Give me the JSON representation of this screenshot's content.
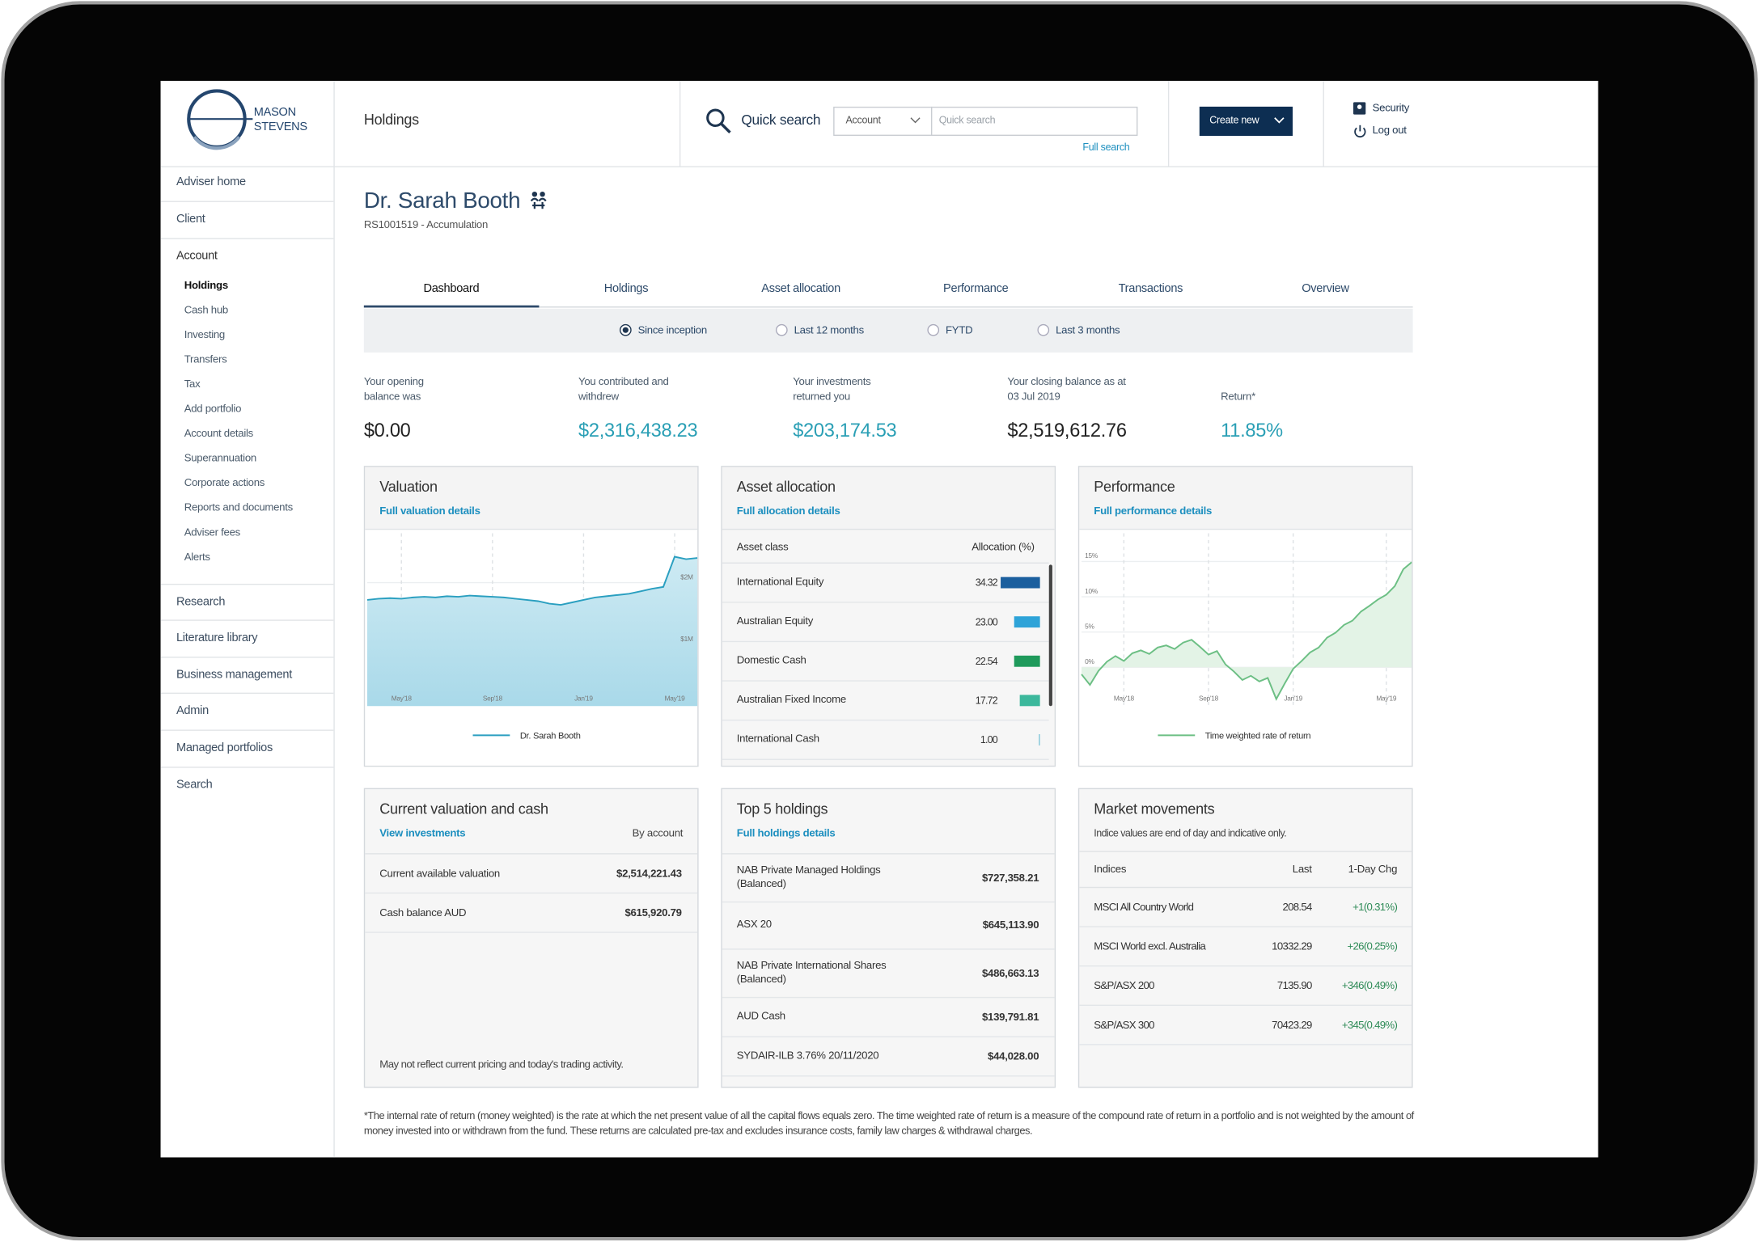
{
  "header": {
    "logo": [
      "MASON",
      "STEVENS"
    ],
    "page_title": "Holdings",
    "search_label": "Quick search",
    "search_select": "Account",
    "search_placeholder": "Quick search",
    "full_search": "Full search",
    "create_button": "Create new",
    "security": "Security",
    "logout": "Log out"
  },
  "nav": [
    {
      "label": "Adviser home"
    },
    {
      "label": "Client"
    },
    {
      "label": "Account",
      "children": [
        {
          "label": "Holdings",
          "active": true
        },
        {
          "label": "Cash hub"
        },
        {
          "label": "Investing"
        },
        {
          "label": "Transfers"
        },
        {
          "label": "Tax"
        },
        {
          "label": "Add portfolio"
        },
        {
          "label": "Account details"
        },
        {
          "label": "Superannuation"
        },
        {
          "label": "Corporate actions"
        },
        {
          "label": "Reports and documents"
        },
        {
          "label": "Adviser fees"
        },
        {
          "label": "Alerts"
        }
      ]
    },
    {
      "label": "Research"
    },
    {
      "label": "Literature library"
    },
    {
      "label": "Business management"
    },
    {
      "label": "Admin"
    },
    {
      "label": "Managed portfolios"
    },
    {
      "label": "Search"
    }
  ],
  "client": {
    "name": "Dr. Sarah Booth",
    "account": "RS1001519 - Accumulation"
  },
  "tabs": [
    {
      "label": "Dashboard",
      "active": true
    },
    {
      "label": "Holdings"
    },
    {
      "label": "Asset allocation"
    },
    {
      "label": "Performance"
    },
    {
      "label": "Transactions"
    },
    {
      "label": "Overview"
    }
  ],
  "periods": [
    {
      "label": "Since inception",
      "selected": true
    },
    {
      "label": "Last 12 months"
    },
    {
      "label": "FYTD"
    },
    {
      "label": "Last 3 months"
    }
  ],
  "summary": [
    {
      "label": [
        "Your opening",
        "balance was"
      ],
      "value": "$0.00"
    },
    {
      "label": [
        "You contributed and",
        "withdrew"
      ],
      "value": "$2,316,438.23",
      "highlight": true
    },
    {
      "label": [
        "Your investments",
        "returned you"
      ],
      "value": "$203,174.53",
      "highlight": true
    },
    {
      "label": [
        "Your closing balance as at",
        "03 Jul 2019"
      ],
      "value": "$2,519,612.76"
    },
    {
      "label": [
        "Return*"
      ],
      "value": "11.85%",
      "highlight": true
    }
  ],
  "chart_data": [
    {
      "type": "area",
      "title": "Valuation",
      "link": "Full valuation details",
      "categories": [
        null,
        null,
        null,
        "May'18",
        null,
        null,
        null,
        null,
        null,
        null,
        null,
        "Sep'18",
        null,
        null,
        null,
        null,
        null,
        null,
        null,
        "Jan'19",
        null,
        null,
        null,
        null,
        null,
        null,
        null,
        "May'19",
        null,
        null
      ],
      "series": [
        {
          "name": "Dr. Sarah Booth",
          "color": "#2a9fc0",
          "values": [
            1.72,
            1.74,
            1.75,
            1.74,
            1.76,
            1.77,
            1.76,
            1.78,
            1.77,
            1.79,
            1.78,
            1.77,
            1.76,
            1.74,
            1.72,
            1.7,
            1.66,
            1.64,
            1.68,
            1.72,
            1.76,
            1.78,
            1.8,
            1.82,
            1.86,
            1.9,
            1.93,
            2.42,
            2.38,
            2.4
          ]
        }
      ],
      "ylim": [
        0,
        2.8
      ],
      "yticks": [
        {
          "value": 1,
          "label": "$1M"
        },
        {
          "value": 2,
          "label": "$2M"
        }
      ],
      "grid": true
    },
    {
      "type": "line",
      "title": "Performance",
      "link": "Full performance details",
      "categories": [
        null,
        null,
        null,
        null,
        null,
        "May'18",
        null,
        null,
        null,
        null,
        null,
        null,
        null,
        null,
        null,
        "Sep'18",
        null,
        null,
        null,
        null,
        null,
        null,
        null,
        null,
        null,
        "Jan'19",
        null,
        null,
        null,
        null,
        null,
        null,
        null,
        null,
        null,
        null,
        "May'19",
        null,
        null,
        null
      ],
      "series": [
        {
          "name": "Time weighted rate of return",
          "color": "#6cbf84",
          "values": [
            -1.0,
            -2.5,
            -0.5,
            0.8,
            1.6,
            0.9,
            2.0,
            2.4,
            1.9,
            2.8,
            3.1,
            2.6,
            3.5,
            3.9,
            2.9,
            1.8,
            2.3,
            0.4,
            -0.6,
            -1.8,
            -1.2,
            -2.0,
            -1.5,
            -4.5,
            -2.3,
            -0.2,
            0.9,
            2.1,
            2.8,
            4.2,
            4.9,
            6.0,
            6.6,
            7.9,
            8.7,
            9.6,
            10.3,
            11.5,
            13.9,
            14.9
          ]
        }
      ],
      "ylim": [
        -5.5,
        19
      ],
      "yticks": [
        {
          "value": 0,
          "label": "0%"
        },
        {
          "value": 5,
          "label": "5%"
        },
        {
          "value": 10,
          "label": "10%"
        },
        {
          "value": 15,
          "label": "15%"
        }
      ],
      "grid": true
    }
  ],
  "asset_allocation": {
    "title": "Asset allocation",
    "link": "Full allocation details",
    "headers": [
      "Asset class",
      "Allocation (%)"
    ],
    "classes": [
      "International Equity",
      "Australian Equity",
      "Domestic Cash",
      "Australian Fixed Income",
      "International Cash"
    ],
    "values": [
      34.32,
      23,
      22.54,
      17.72,
      1
    ],
    "value_labels": [
      "34.32",
      "23.00",
      "22.54",
      "17.72",
      "1.00"
    ],
    "colors": [
      "#1b5f9e",
      "#2ea3d8",
      "#1f9a5b",
      "#3cb89c",
      "#7fc6d8"
    ]
  },
  "current_valuation": {
    "title": "Current valuation and cash",
    "link": "View investments",
    "by": "By account",
    "rows": [
      [
        "Current available valuation",
        "$2,514,221.43"
      ],
      [
        "Cash balance AUD",
        "$615,920.79"
      ]
    ],
    "note": "May not reflect current pricing and today's trading activity."
  },
  "top_holdings": {
    "title": "Top 5 holdings",
    "link": "Full holdings details",
    "rows": [
      [
        "NAB Private Managed Holdings (Balanced)",
        "$727,358.21"
      ],
      [
        "ASX 20",
        "$645,113.90"
      ],
      [
        "NAB Private International Shares (Balanced)",
        "$486,663.13"
      ],
      [
        "AUD Cash",
        "$139,791.81"
      ],
      [
        "SYDAIR-ILB 3.76% 20/11/2020",
        "$44,028.00"
      ]
    ]
  },
  "market": {
    "title": "Market movements",
    "subtitle": "Indice values are end of day and indicative only.",
    "headers": [
      "Indices",
      "Last",
      "1-Day Chg"
    ],
    "rows": [
      [
        "MSCI All Country World",
        "208.54",
        "+1(0.31%)"
      ],
      [
        "MSCI World excl. Australia",
        "10332.29",
        "+26(0.25%)"
      ],
      [
        "S&P/ASX 200",
        "7135.90",
        "+346(0.49%)"
      ],
      [
        "S&P/ASX 300",
        "70423.29",
        "+345(0.49%)"
      ]
    ]
  },
  "footnote": "*The internal rate of return (money weighted) is the rate at which the net present value of all the capital flows equals zero. The time weighted rate of return is a measure of the compound rate of return in a portfolio and is not weighted by the amount of money invested into or withdrawn from the fund. These returns are calculated pre-tax and excludes insurance costs, family law charges & withdrawal charges."
}
